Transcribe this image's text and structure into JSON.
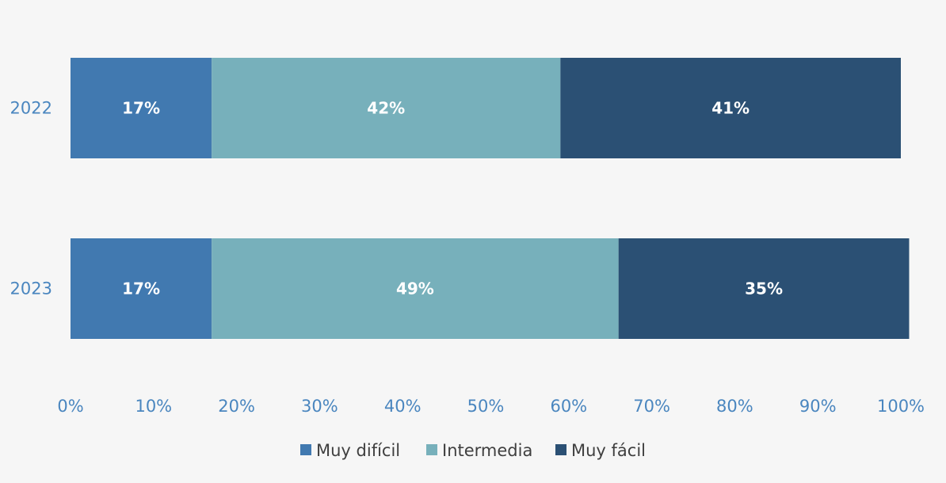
{
  "chart_data": {
    "type": "bar",
    "orientation": "horizontal",
    "stacked": true,
    "categories": [
      "2022",
      "2023"
    ],
    "series": [
      {
        "name": "Muy difícil",
        "color": "#4179b0",
        "values": [
          17,
          17
        ],
        "labels": [
          "17%",
          "17%"
        ]
      },
      {
        "name": "Intermedia",
        "color": "#77b0bb",
        "values": [
          42,
          49
        ],
        "labels": [
          "42%",
          "49%"
        ]
      },
      {
        "name": "Muy fácil",
        "color": "#2b5074",
        "values": [
          41,
          35
        ],
        "labels": [
          "41%",
          "35%"
        ]
      }
    ],
    "xlim": [
      0,
      100
    ],
    "x_ticks": [
      "0%",
      "10%",
      "20%",
      "30%",
      "40%",
      "50%",
      "60%",
      "70%",
      "80%",
      "90%",
      "100%"
    ],
    "grid": false,
    "legend_position": "bottom",
    "title": "",
    "xlabel": "",
    "ylabel": ""
  }
}
